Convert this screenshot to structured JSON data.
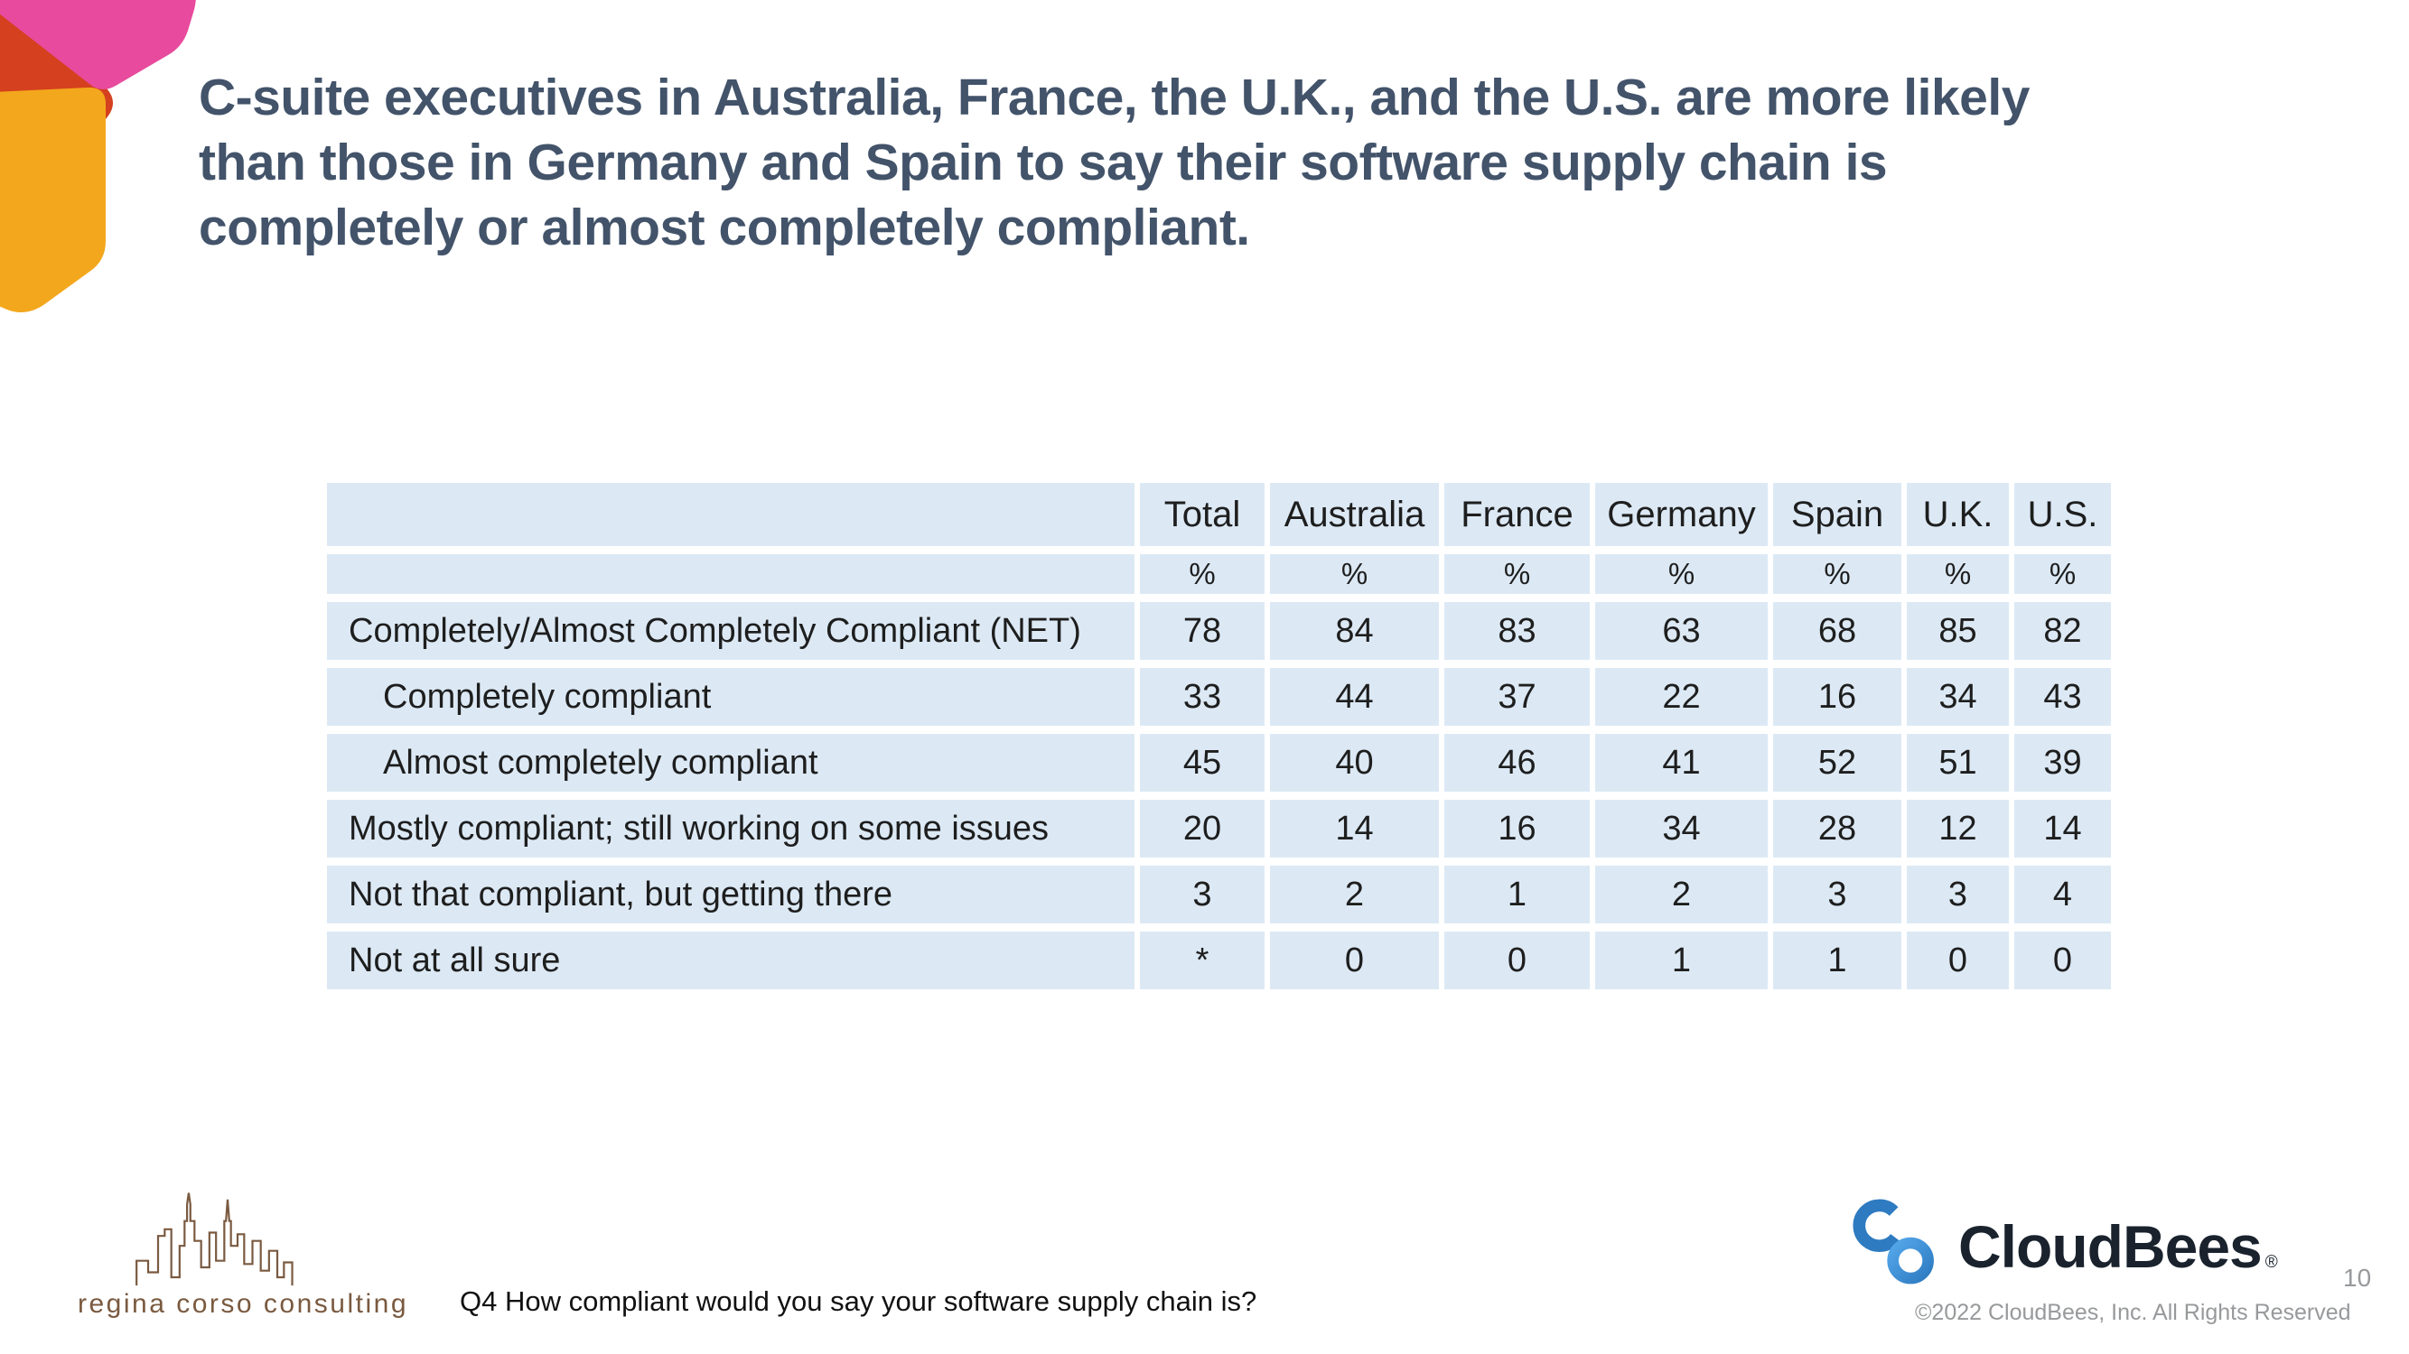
{
  "slide": {
    "title_lines": [
      "C-suite executives in Australia, France, the U.K., and the U.S. are more likely",
      "than those in Germany and Spain to say their software supply chain is",
      "completely or almost completely compliant."
    ],
    "footnote": "Q4 How compliant would you say your software supply chain is?",
    "copyright": "©2022 CloudBees, Inc. All Rights Reserved",
    "page_number": "10"
  },
  "branding": {
    "cloudbees_wordmark": "CloudBees",
    "registered_mark": "®",
    "consulting_text": "regina corso consulting"
  },
  "colors": {
    "title": "#42536a",
    "table-bg": "#dce9f5",
    "table-text": "#1e1e1e",
    "deco-pink": "#e84a9d",
    "deco-red": "#d5401f",
    "deco-yellow": "#f3a71c",
    "cb-dark": "#19222d",
    "cb-blue": "#2e7bc1",
    "cb-blue-light": "#54a7ea",
    "rcc-brown": "#7a5a40",
    "muted": "#97999b"
  },
  "chart_data": {
    "type": "table",
    "title": "Software supply chain compliance by country (% of C-suite executives)",
    "columns": [
      "",
      "Total",
      "Australia",
      "France",
      "Germany",
      "Spain",
      "U.K.",
      "U.S."
    ],
    "unit_row": [
      "",
      "%",
      "%",
      "%",
      "%",
      "%",
      "%",
      "%"
    ],
    "rows": [
      {
        "label": "Completely/Almost Completely Compliant (NET)",
        "indent": false,
        "values": [
          "78",
          "84",
          "83",
          "63",
          "68",
          "85",
          "82"
        ]
      },
      {
        "label": "Completely compliant",
        "indent": true,
        "values": [
          "33",
          "44",
          "37",
          "22",
          "16",
          "34",
          "43"
        ]
      },
      {
        "label": "Almost completely compliant",
        "indent": true,
        "values": [
          "45",
          "40",
          "46",
          "41",
          "52",
          "51",
          "39"
        ]
      },
      {
        "label": "Mostly compliant; still working on some issues",
        "indent": false,
        "values": [
          "20",
          "14",
          "16",
          "34",
          "28",
          "12",
          "14"
        ]
      },
      {
        "label": "Not that compliant, but getting there",
        "indent": false,
        "values": [
          "3",
          "2",
          "1",
          "2",
          "3",
          "3",
          "4"
        ]
      },
      {
        "label": "Not at all sure",
        "indent": false,
        "values": [
          "*",
          "0",
          "0",
          "1",
          "1",
          "0",
          "0"
        ]
      }
    ]
  }
}
